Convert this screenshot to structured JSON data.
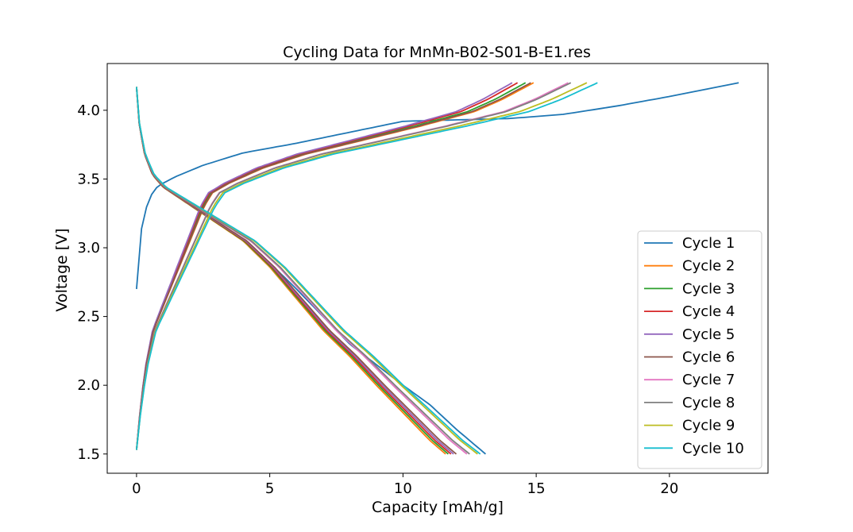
{
  "chart_data": {
    "type": "line",
    "title": "Cycling Data for MnMn-B02-S01-B-E1.res",
    "xlabel": "Capacity [mAh/g]",
    "ylabel": "Voltage [V]",
    "xlim": [
      -1.1,
      23.7
    ],
    "ylim": [
      1.36,
      4.34
    ],
    "xticks": [
      0,
      5,
      10,
      15,
      20
    ],
    "xtick_labels": [
      "0",
      "5",
      "10",
      "15",
      "20"
    ],
    "yticks": [
      1.5,
      2.0,
      2.5,
      3.0,
      3.5,
      4.0
    ],
    "ytick_labels": [
      "1.5",
      "2.0",
      "2.5",
      "3.0",
      "3.5",
      "4.0"
    ],
    "grid": false,
    "legend_position": "lower-right",
    "series": [
      {
        "name": "Cycle 1",
        "color": "#1f77b4",
        "qmax": 22.6,
        "dmax": 13.1,
        "cycle1": true
      },
      {
        "name": "Cycle 2",
        "color": "#ff7f0e",
        "qmax": 14.9,
        "dmax": 11.6
      },
      {
        "name": "Cycle 3",
        "color": "#2ca02c",
        "qmax": 14.6,
        "dmax": 11.7
      },
      {
        "name": "Cycle 4",
        "color": "#d62728",
        "qmax": 14.3,
        "dmax": 11.8
      },
      {
        "name": "Cycle 5",
        "color": "#9467bd",
        "qmax": 14.1,
        "dmax": 11.9
      },
      {
        "name": "Cycle 6",
        "color": "#8c564b",
        "qmax": 14.8,
        "dmax": 12.0
      },
      {
        "name": "Cycle 7",
        "color": "#e377c2",
        "qmax": 16.2,
        "dmax": 12.4
      },
      {
        "name": "Cycle 8",
        "color": "#7f7f7f",
        "qmax": 16.3,
        "dmax": 12.5
      },
      {
        "name": "Cycle 9",
        "color": "#bcbd22",
        "qmax": 16.9,
        "dmax": 12.8
      },
      {
        "name": "Cycle 10",
        "color": "#17becf",
        "qmax": 17.3,
        "dmax": 12.9
      }
    ]
  }
}
